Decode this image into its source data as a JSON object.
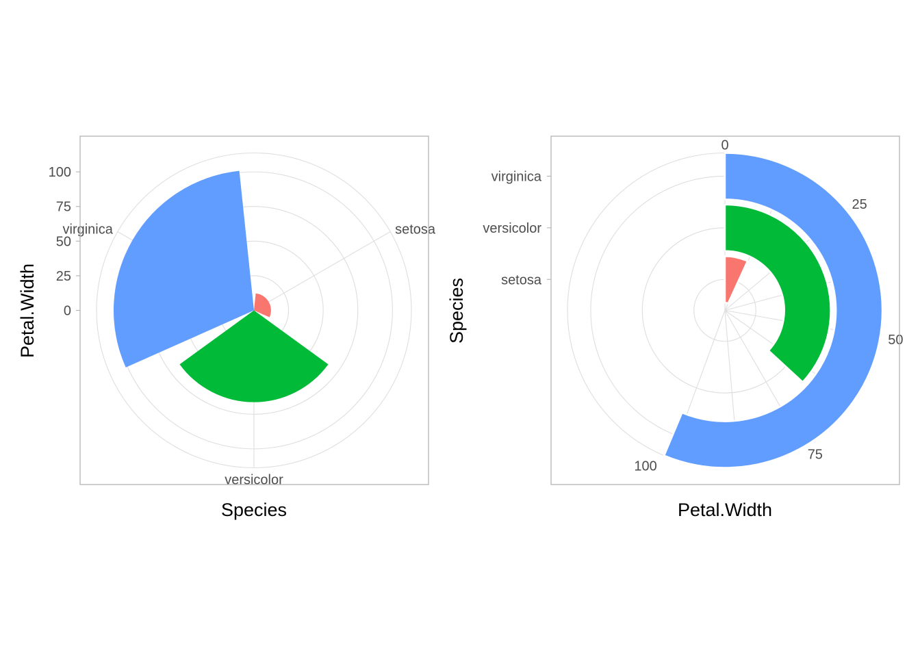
{
  "colors": {
    "setosa": "#F8766D",
    "versicolor": "#00BA38",
    "virginica": "#619CFF"
  },
  "chart_data": [
    {
      "type": "bar",
      "coord": "polar-theta-x",
      "categories": [
        "setosa",
        "versicolor",
        "virginica"
      ],
      "values": [
        12.3,
        66.3,
        101.3
      ],
      "xlabel": "Species",
      "ylabel": "Petal.Width",
      "y_ticks": [
        0,
        25,
        50,
        75,
        100
      ],
      "y_tick_labels": [
        "0",
        "25",
        "50",
        "75",
        "100"
      ],
      "ylim": [
        0,
        101.3
      ],
      "category_labels": [
        "setosa",
        "versicolor",
        "virginica"
      ],
      "grid": true,
      "legend": "none"
    },
    {
      "type": "bar",
      "coord": "polar-theta-y",
      "categories": [
        "setosa",
        "versicolor",
        "virginica"
      ],
      "values": [
        12.3,
        66.3,
        101.3
      ],
      "xlabel": "Petal.Width",
      "ylabel": "Species",
      "theta_ticks": [
        0,
        25,
        50,
        75,
        100
      ],
      "theta_tick_labels": [
        "0",
        "25",
        "50",
        "75",
        "100"
      ],
      "category_labels": [
        "setosa",
        "versicolor",
        "virginica"
      ],
      "grid": true,
      "legend": "none"
    }
  ]
}
